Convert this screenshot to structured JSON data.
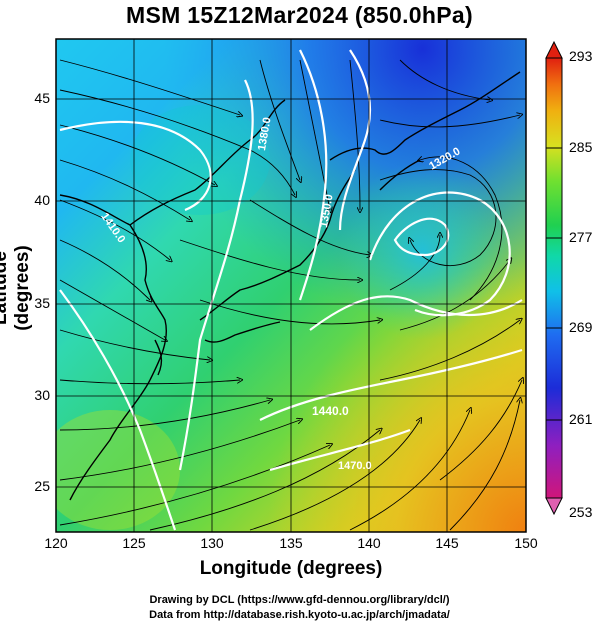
{
  "title": "MSM 15Z12Mar2024 (850.0hPa)",
  "axes": {
    "x_label": "Longitude (degrees)",
    "y_label": "Latitude  (degrees)",
    "x_ticks": [
      "120",
      "125",
      "130",
      "135",
      "140",
      "145",
      "150"
    ],
    "y_ticks": [
      "45",
      "40",
      "35",
      "30",
      "25"
    ]
  },
  "colorbar": {
    "ticks": [
      "293",
      "285",
      "277",
      "269",
      "261",
      "253"
    ],
    "colors": [
      "#d0167a",
      "#8e1fc0",
      "#1c2cd8",
      "#1f6cf0",
      "#10c0e8",
      "#10d8a8",
      "#20d050",
      "#70e030",
      "#d8e020",
      "#f0b010",
      "#f07010",
      "#e02010"
    ]
  },
  "contour_labels": {
    "l1": "1440.0",
    "l2": "1320.0",
    "l3": "1350.0",
    "l4": "1380.0",
    "l5": "1410.0",
    "l6": "1470.0"
  },
  "credits": {
    "line1": "Drawing by DCL (https://www.gfd-dennou.org/library/dcl/)",
    "line2": "Data from http://database.rish.kyoto-u.ac.jp/arch/jmadata/"
  }
}
